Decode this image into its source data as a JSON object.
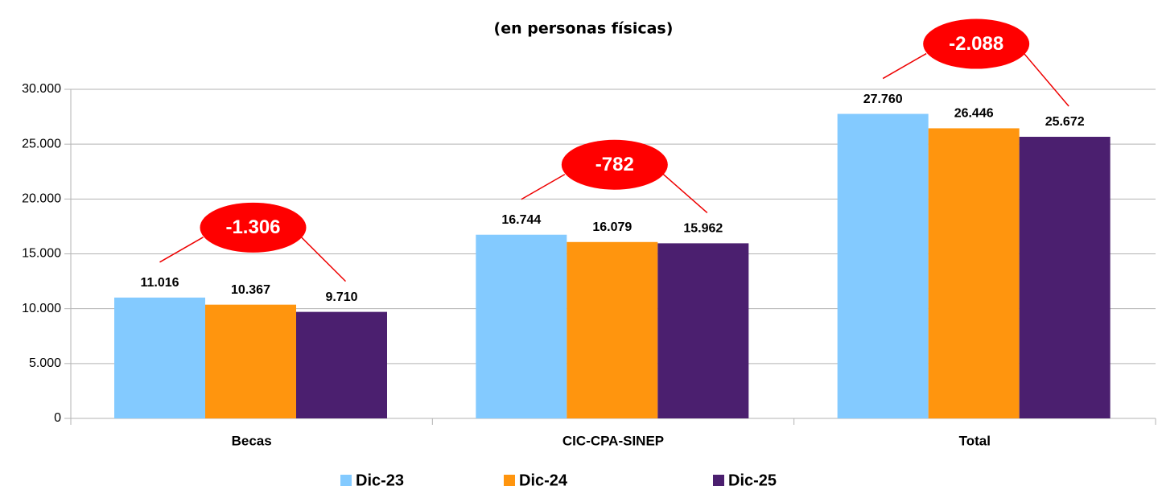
{
  "chart_data": {
    "type": "bar",
    "title": "(en personas físicas)",
    "categories": [
      "Becas",
      "CIC-CPA-SINEP",
      "Total"
    ],
    "series": [
      {
        "name": "Dic-23",
        "color": "#83caff",
        "values": [
          11016,
          16744,
          27760
        ],
        "value_labels": [
          "11.016",
          "16.744",
          "27.760"
        ]
      },
      {
        "name": "Dic-24",
        "color": "#ff950e",
        "values": [
          10367,
          16079,
          26446
        ],
        "value_labels": [
          "10.367",
          "16.079",
          "26.446"
        ]
      },
      {
        "name": "Dic-25",
        "color": "#4b1f6f",
        "values": [
          9710,
          15962,
          25672
        ],
        "value_labels": [
          "9.710",
          "15.962",
          "25.672"
        ]
      }
    ],
    "annotations": [
      "-1.306",
      "-782",
      "-2.088"
    ],
    "ylim": [
      0,
      30000
    ],
    "yticks": [
      0,
      {
        "value": 5000,
        "label": "5.000"
      },
      {
        "value": 10000,
        "label": "10.000"
      },
      {
        "value": 15000,
        "label": "15.000"
      },
      {
        "value": 20000,
        "label": "20.000"
      },
      {
        "value": 25000,
        "label": "25.000"
      },
      {
        "value": 30000,
        "label": "30.000"
      }
    ],
    "grid": true,
    "legend": "bottom"
  }
}
